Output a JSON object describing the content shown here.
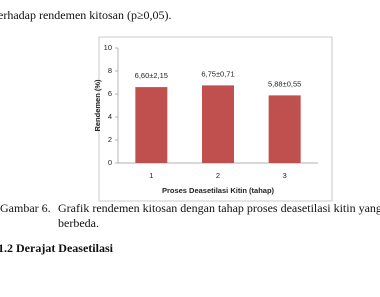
{
  "document": {
    "top_line": "erhadap rendemen kitosan (p≥0,05).",
    "caption": {
      "label": "Gambar 6.",
      "text_line1": "Grafik rendemen kitosan dengan tahap proses deasetilasi kitin yang",
      "text_line2": "berbeda."
    },
    "heading": "1.2 Derajat Deasetilasi"
  },
  "chart_data": {
    "type": "bar",
    "categories": [
      "1",
      "2",
      "3"
    ],
    "values": [
      6.6,
      6.75,
      5.88
    ],
    "value_labels": [
      "6,60±2,15",
      "6,75±0,71",
      "5,88±0,55"
    ],
    "color": "#c0504d",
    "ylim": [
      0,
      10
    ],
    "yticks": [
      0,
      2,
      4,
      6,
      8,
      10
    ],
    "y_label": "Rendemen (%)",
    "x_label": "Proses Deasetilasi Kitin (tahap)",
    "grid": false
  }
}
